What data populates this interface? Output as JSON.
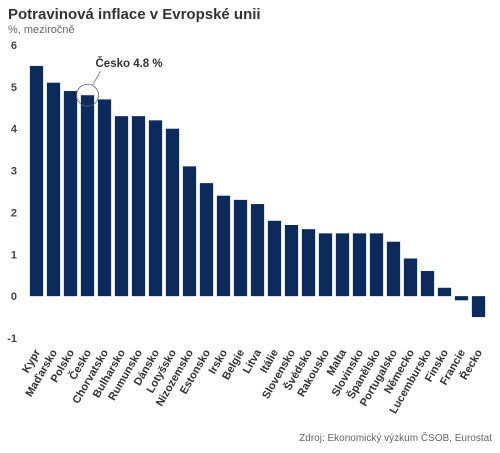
{
  "chart_data": {
    "type": "bar",
    "title": "Potravinová inflace v Evropské unii",
    "subtitle": "%, meziročně",
    "source": "Zdroj: Ekonomický výzkum ČSOB, Eurostat",
    "categories": [
      "Kypr",
      "Maďarsko",
      "Polsko",
      "Česko",
      "Chorvatsko",
      "Bulharsko",
      "Rumunsko",
      "Dánsko",
      "Lotyšsko",
      "Nizozemsko",
      "Estonsko",
      "Irsko",
      "Belgie",
      "Litva",
      "Itálie",
      "Slovensko",
      "Švédsko",
      "Rakousko",
      "Malta",
      "Slovinsko",
      "Španělsko",
      "Portugalsko",
      "Německo",
      "Lucembursko",
      "Finsko",
      "Francie",
      "Řecko"
    ],
    "values": [
      5.5,
      5.1,
      4.9,
      4.8,
      4.7,
      4.3,
      4.3,
      4.2,
      4.0,
      3.1,
      2.7,
      2.4,
      2.3,
      2.2,
      1.8,
      1.7,
      1.6,
      1.5,
      1.5,
      1.5,
      1.5,
      1.3,
      0.9,
      0.6,
      0.2,
      -0.1,
      -0.5
    ],
    "ylim": [
      -1,
      6
    ],
    "yticks": [
      "-1",
      "0",
      "1",
      "2",
      "3",
      "4",
      "5",
      "6"
    ],
    "bar_color": "#0d2a5c",
    "grid": false,
    "annotation": {
      "category": "Česko",
      "text": "Česko 4.8 %"
    }
  }
}
